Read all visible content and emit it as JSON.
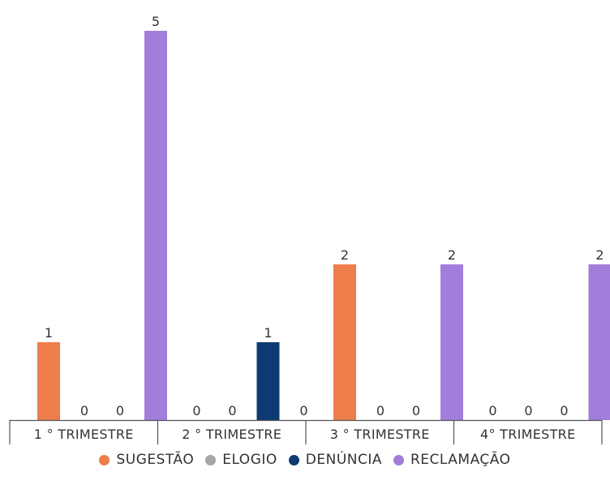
{
  "chart_data": {
    "type": "bar",
    "categories": [
      "1 ° TRIMESTRE",
      "2 ° TRIMESTRE",
      "3 ° TRIMESTRE",
      "4° TRIMESTRE"
    ],
    "series": [
      {
        "name": "SUGESTÃO",
        "color": "#ED7D4A",
        "values": [
          1,
          0,
          2,
          0
        ]
      },
      {
        "name": "ELOGIO",
        "color": "#A6A6A6",
        "values": [
          0,
          0,
          0,
          0
        ]
      },
      {
        "name": "DENÚNCIA",
        "color": "#0E3A73",
        "values": [
          0,
          1,
          0,
          0
        ]
      },
      {
        "name": "RECLAMAÇÃO",
        "color": "#A27DDB",
        "values": [
          5,
          0,
          2,
          2
        ]
      }
    ],
    "title": "",
    "xlabel": "",
    "ylabel": "",
    "ylim": [
      0,
      5
    ],
    "grid": false,
    "legend_position": "bottom",
    "data_labels": true
  }
}
